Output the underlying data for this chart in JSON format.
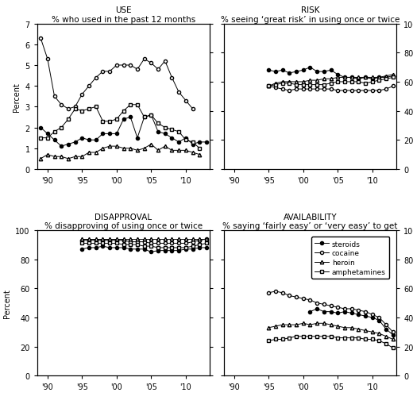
{
  "years": [
    1989,
    1990,
    1991,
    1992,
    1993,
    1994,
    1995,
    1996,
    1997,
    1998,
    1999,
    2000,
    2001,
    2002,
    2003,
    2004,
    2005,
    2006,
    2007,
    2008,
    2009,
    2010,
    2011,
    2012,
    2013
  ],
  "use_steroids": [
    2.0,
    1.7,
    1.4,
    1.1,
    1.2,
    1.3,
    1.5,
    1.4,
    1.4,
    1.7,
    1.7,
    1.7,
    2.4,
    2.5,
    1.5,
    2.5,
    2.6,
    1.8,
    1.7,
    1.5,
    1.3,
    1.5,
    1.2,
    1.3,
    1.3
  ],
  "use_cocaine": [
    6.3,
    5.3,
    3.5,
    3.1,
    2.9,
    3.0,
    3.6,
    4.0,
    4.4,
    4.7,
    4.7,
    5.0,
    5.0,
    5.0,
    4.8,
    5.3,
    5.1,
    4.8,
    5.2,
    4.4,
    3.7,
    3.3,
    2.9,
    null,
    null
  ],
  "use_heroin": [
    0.5,
    0.7,
    0.6,
    0.6,
    0.5,
    0.6,
    0.6,
    0.8,
    0.8,
    1.0,
    1.1,
    1.1,
    1.0,
    1.0,
    0.9,
    1.0,
    1.2,
    0.9,
    1.1,
    0.9,
    0.9,
    0.9,
    0.8,
    0.7,
    null
  ],
  "use_amphetamines": [
    1.5,
    1.5,
    1.8,
    2.0,
    2.4,
    2.9,
    2.8,
    2.9,
    3.0,
    2.3,
    2.3,
    2.4,
    2.8,
    3.1,
    3.1,
    2.5,
    2.6,
    2.2,
    2.0,
    1.9,
    1.8,
    1.4,
    1.3,
    1.0,
    null
  ],
  "risk_steroids": [
    null,
    null,
    null,
    null,
    null,
    null,
    68,
    67,
    68,
    66,
    67,
    68,
    70,
    67,
    67,
    68,
    65,
    63,
    63,
    62,
    63,
    62,
    63,
    63,
    64
  ],
  "risk_cocaine": [
    null,
    null,
    null,
    null,
    null,
    null,
    57,
    56,
    55,
    54,
    55,
    55,
    55,
    55,
    55,
    55,
    54,
    54,
    54,
    54,
    54,
    54,
    54,
    55,
    57
  ],
  "risk_heroin": [
    null,
    null,
    null,
    null,
    null,
    null,
    57,
    59,
    60,
    60,
    60,
    60,
    61,
    61,
    62,
    62,
    63,
    63,
    63,
    63,
    63,
    63,
    63,
    64,
    65
  ],
  "risk_amphetamines": [
    null,
    null,
    null,
    null,
    null,
    null,
    57,
    58,
    59,
    59,
    58,
    58,
    58,
    58,
    58,
    59,
    60,
    60,
    60,
    60,
    59,
    60,
    61,
    62,
    63
  ],
  "disap_steroids": [
    null,
    null,
    null,
    null,
    null,
    null,
    87,
    88,
    88,
    89,
    88,
    88,
    88,
    87,
    87,
    87,
    85,
    86,
    86,
    86,
    86,
    87,
    87,
    88,
    88
  ],
  "disap_cocaine": [
    null,
    null,
    null,
    null,
    null,
    null,
    93,
    93,
    93,
    93,
    93,
    93,
    93,
    92,
    92,
    92,
    91,
    91,
    91,
    91,
    91,
    91,
    92,
    93,
    94
  ],
  "disap_heroin": [
    null,
    null,
    null,
    null,
    null,
    null,
    94,
    94,
    94,
    94,
    94,
    94,
    94,
    94,
    94,
    94,
    94,
    94,
    94,
    94,
    94,
    94,
    94,
    94,
    94
  ],
  "disap_amphetamines": [
    null,
    null,
    null,
    null,
    null,
    null,
    91,
    91,
    91,
    91,
    91,
    91,
    90,
    90,
    90,
    89,
    89,
    88,
    88,
    88,
    88,
    88,
    89,
    90,
    91
  ],
  "avail_steroids": [
    null,
    null,
    null,
    null,
    null,
    null,
    null,
    null,
    null,
    null,
    null,
    null,
    44,
    46,
    44,
    44,
    43,
    44,
    43,
    42,
    41,
    40,
    38,
    32,
    28
  ],
  "avail_cocaine": [
    null,
    null,
    null,
    null,
    null,
    null,
    57,
    58,
    57,
    55,
    54,
    53,
    52,
    50,
    49,
    48,
    47,
    46,
    46,
    45,
    44,
    42,
    40,
    35,
    30
  ],
  "avail_heroin": [
    null,
    null,
    null,
    null,
    null,
    null,
    33,
    34,
    35,
    35,
    35,
    36,
    35,
    36,
    36,
    35,
    34,
    33,
    33,
    32,
    31,
    30,
    29,
    27,
    25
  ],
  "avail_amphetamines": [
    null,
    null,
    null,
    null,
    null,
    null,
    24,
    25,
    25,
    26,
    27,
    27,
    27,
    27,
    27,
    27,
    26,
    26,
    26,
    26,
    25,
    25,
    24,
    22,
    19
  ],
  "xticks": [
    1990,
    1995,
    2000,
    2005,
    2010
  ],
  "xticklabels": [
    "'90",
    "'95",
    "'00",
    "'05",
    "'10"
  ],
  "xlim": [
    1988.5,
    2013.5
  ]
}
